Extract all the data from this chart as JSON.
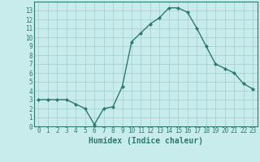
{
  "x": [
    0,
    1,
    2,
    3,
    4,
    5,
    6,
    7,
    8,
    9,
    10,
    11,
    12,
    13,
    14,
    15,
    16,
    17,
    18,
    19,
    20,
    21,
    22,
    23
  ],
  "y": [
    3,
    3,
    3,
    3,
    2.5,
    2,
    0.2,
    2,
    2.2,
    4.5,
    9.5,
    10.5,
    11.5,
    12.2,
    13.3,
    13.3,
    12.8,
    11,
    9,
    7,
    6.5,
    6,
    4.8,
    4.2
  ],
  "line_color": "#2d7a6e",
  "marker": "D",
  "marker_size": 2,
  "bg_color": "#c8ecec",
  "grid_color": "#a0cccc",
  "xlabel": "Humidex (Indice chaleur)",
  "xlabel_fontsize": 7,
  "xlim": [
    -0.5,
    23.5
  ],
  "ylim": [
    0,
    14
  ],
  "yticks": [
    0,
    1,
    2,
    3,
    4,
    5,
    6,
    7,
    8,
    9,
    10,
    11,
    12,
    13
  ],
  "xticks": [
    0,
    1,
    2,
    3,
    4,
    5,
    6,
    7,
    8,
    9,
    10,
    11,
    12,
    13,
    14,
    15,
    16,
    17,
    18,
    19,
    20,
    21,
    22,
    23
  ],
  "tick_fontsize": 5.5,
  "line_width": 1.0
}
